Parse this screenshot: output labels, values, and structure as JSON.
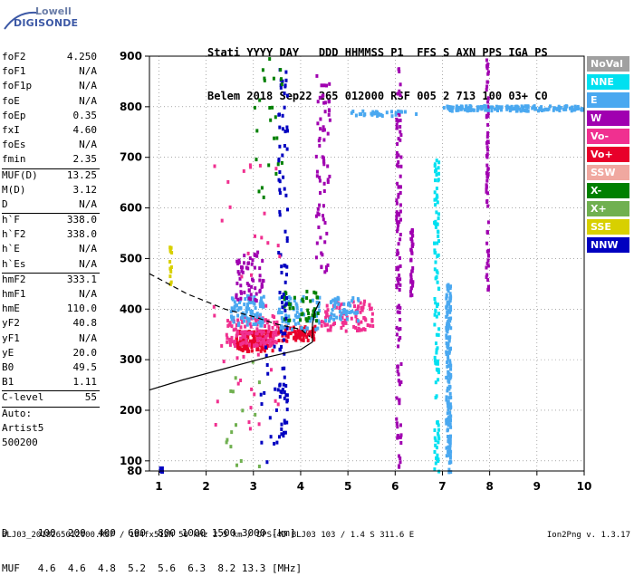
{
  "logo": {
    "line1": "Lowell",
    "line2": "DIGISONDE"
  },
  "header": {
    "line1": "Stati YYYY DAY   DDD HHMMSS P1  FFS S AXN PPS IGA PS",
    "line2": "Belem 2018 Sep22 265 012000 RSF 005 2 713 100 03+ C0"
  },
  "params": [
    {
      "name": "foF2",
      "value": "4.250"
    },
    {
      "name": "foF1",
      "value": "N/A"
    },
    {
      "name": "foF1p",
      "value": "N/A"
    },
    {
      "name": "foE",
      "value": "N/A"
    },
    {
      "name": "foEp",
      "value": "0.35"
    },
    {
      "name": "fxI",
      "value": "4.60"
    },
    {
      "name": "foEs",
      "value": "N/A"
    },
    {
      "name": "fmin",
      "value": "2.35"
    },
    {
      "name": "MUF(D)",
      "value": "13.25"
    },
    {
      "name": "M(D)",
      "value": "3.12"
    },
    {
      "name": "D",
      "value": "N/A"
    },
    {
      "name": "h`F",
      "value": "338.0"
    },
    {
      "name": "h`F2",
      "value": "338.0"
    },
    {
      "name": "h`E",
      "value": "N/A"
    },
    {
      "name": "h`Es",
      "value": "N/A"
    },
    {
      "name": "hmF2",
      "value": "333.1"
    },
    {
      "name": "hmF1",
      "value": "N/A"
    },
    {
      "name": "hmE",
      "value": "110.0"
    },
    {
      "name": "yF2",
      "value": "40.8"
    },
    {
      "name": "yF1",
      "value": "N/A"
    },
    {
      "name": "yE",
      "value": "20.0"
    },
    {
      "name": "B0",
      "value": "49.5"
    },
    {
      "name": "B1",
      "value": "1.11"
    },
    {
      "name": "C-level",
      "value": "55"
    },
    {
      "name": "Auto:",
      "value": ""
    },
    {
      "name": "Artist5",
      "value": ""
    },
    {
      "name": "500200",
      "value": ""
    }
  ],
  "legend": [
    {
      "label": "NoVal",
      "color": "#a0a0a0"
    },
    {
      "label": "NNE",
      "color": "#00e0f0"
    },
    {
      "label": "E",
      "color": "#4aa8f0"
    },
    {
      "label": "W",
      "color": "#a000b0"
    },
    {
      "label": "Vo-",
      "color": "#f03090"
    },
    {
      "label": "Vo+",
      "color": "#e8002a"
    },
    {
      "label": "SSW",
      "color": "#f0a8a0"
    },
    {
      "label": "X-",
      "color": "#008000"
    },
    {
      "label": "X+",
      "color": "#70b050"
    },
    {
      "label": "SSE",
      "color": "#d8d000"
    },
    {
      "label": "NNW",
      "color": "#0000c0"
    }
  ],
  "footer": {
    "d_line": "D     100  200  400  600  800 1000 1500 3000 [km]",
    "muf_line": "MUF   4.6  4.6  4.8  5.2  5.6  6.3  8.2 13.3 [MHz]"
  },
  "fileline": "BLJ03_2018265012000.RSF / 184fx512h 50 kHz 2.5 km / DPS-4D BLJ03 103 / 1.4 S 311.6 E",
  "version": "Ion2Png v. 1.3.17",
  "chart_data": {
    "type": "scatter",
    "title": "",
    "xlabel": "",
    "ylabel": "",
    "xlim": [
      0.8,
      10
    ],
    "ylim": [
      80,
      900
    ],
    "xticks": [
      1,
      2,
      3,
      4,
      5,
      6,
      7,
      8,
      9,
      10
    ],
    "yticks": [
      80,
      100,
      200,
      300,
      400,
      500,
      600,
      700,
      800,
      900
    ],
    "grid": "dotted",
    "profile_curve": [
      [
        0.8,
        240
      ],
      [
        1.5,
        260
      ],
      [
        2.5,
        285
      ],
      [
        3.3,
        305
      ],
      [
        4.0,
        320
      ],
      [
        4.25,
        335
      ],
      [
        4.25,
        370
      ],
      [
        4.3,
        395
      ],
      [
        4.4,
        415
      ]
    ],
    "virtual_height_curve": [
      [
        0.8,
        470
      ],
      [
        1.6,
        430
      ],
      [
        2.4,
        400
      ],
      [
        3.0,
        385
      ],
      [
        3.5,
        370
      ],
      [
        4.0,
        360
      ],
      [
        4.2,
        345
      ]
    ],
    "clusters": [
      {
        "series": "Vo+",
        "x": [
          2.6,
          3.4
        ],
        "y": [
          320,
          360
        ],
        "n": 160
      },
      {
        "series": "Vo-",
        "x": [
          2.4,
          3.5
        ],
        "y": [
          330,
          390
        ],
        "n": 130
      },
      {
        "series": "E",
        "x": [
          2.5,
          3.2
        ],
        "y": [
          370,
          430
        ],
        "n": 90
      },
      {
        "series": "W",
        "x": [
          2.6,
          3.2
        ],
        "y": [
          420,
          520
        ],
        "n": 60
      },
      {
        "series": "Vo+",
        "x": [
          3.5,
          4.3
        ],
        "y": [
          340,
          370
        ],
        "n": 80
      },
      {
        "series": "E",
        "x": [
          3.5,
          4.4
        ],
        "y": [
          360,
          430
        ],
        "n": 70
      },
      {
        "series": "X-",
        "x": [
          3.6,
          4.4
        ],
        "y": [
          380,
          440
        ],
        "n": 40
      },
      {
        "series": "Vo-",
        "x": [
          4.4,
          5.5
        ],
        "y": [
          360,
          420
        ],
        "n": 90
      },
      {
        "series": "E",
        "x": [
          4.5,
          5.2
        ],
        "y": [
          380,
          430
        ],
        "n": 50
      },
      {
        "series": "NNW",
        "x": [
          3.5,
          3.7
        ],
        "y": [
          150,
          880
        ],
        "n": 90
      },
      {
        "series": "W",
        "x": [
          4.3,
          4.6
        ],
        "y": [
          470,
          870
        ],
        "n": 70
      },
      {
        "series": "W",
        "x": [
          6.0,
          6.1
        ],
        "y": [
          80,
          880
        ],
        "n": 120
      },
      {
        "series": "W",
        "x": [
          6.3,
          6.35
        ],
        "y": [
          430,
          560
        ],
        "n": 40
      },
      {
        "series": "NNE",
        "x": [
          6.8,
          6.9
        ],
        "y": [
          80,
          700
        ],
        "n": 110
      },
      {
        "series": "E",
        "x": [
          7.05,
          7.15
        ],
        "y": [
          80,
          460
        ],
        "n": 160
      },
      {
        "series": "W",
        "x": [
          7.9,
          7.95
        ],
        "y": [
          440,
          900
        ],
        "n": 70
      },
      {
        "series": "E",
        "x": [
          7.0,
          10.0
        ],
        "y": [
          795,
          805
        ],
        "n": 160
      },
      {
        "series": "E",
        "x": [
          5.0,
          6.5
        ],
        "y": [
          785,
          795
        ],
        "n": 30
      },
      {
        "series": "NNW",
        "x": [
          1.0,
          1.05
        ],
        "y": [
          80,
          90
        ],
        "n": 10
      },
      {
        "series": "SSE",
        "x": [
          1.2,
          1.25
        ],
        "y": [
          450,
          530
        ],
        "n": 15
      },
      {
        "series": "X-",
        "x": [
          3.0,
          3.6
        ],
        "y": [
          600,
          900
        ],
        "n": 25
      },
      {
        "series": "Vo-",
        "x": [
          2.0,
          3.6
        ],
        "y": [
          150,
          700
        ],
        "n": 40
      },
      {
        "series": "X+",
        "x": [
          2.4,
          3.1
        ],
        "y": [
          80,
          300
        ],
        "n": 15
      },
      {
        "series": "NNW",
        "x": [
          3.1,
          3.7
        ],
        "y": [
          100,
          330
        ],
        "n": 25
      }
    ]
  }
}
